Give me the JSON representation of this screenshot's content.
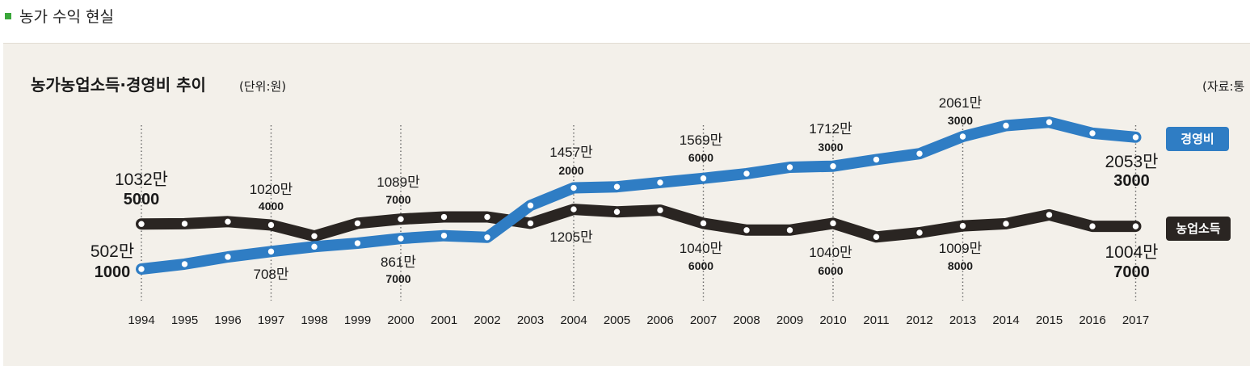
{
  "heading": "농가 수익 현실",
  "chart_data": {
    "type": "line",
    "title": "농가농업소득·경영비 추이",
    "unit": "(단위:원)",
    "source": "(자료:통",
    "x": [
      "1994",
      "1995",
      "1996",
      "1997",
      "1998",
      "1999",
      "2000",
      "2001",
      "2002",
      "2003",
      "2004",
      "2005",
      "2006",
      "2007",
      "2008",
      "2009",
      "2010",
      "2011",
      "2012",
      "2013",
      "2014",
      "2015",
      "2016",
      "2017"
    ],
    "series": [
      {
        "name": "경영비",
        "color": "#2f7dc4",
        "values": [
          5021000,
          5600000,
          6450000,
          7080000,
          7650000,
          8060000,
          8617000,
          8950000,
          8750000,
          12500000,
          14572000,
          14700000,
          15200000,
          15696000,
          16250000,
          17000000,
          17123000,
          17900000,
          18600000,
          20613000,
          21900000,
          22300000,
          21000000,
          20533000
        ]
      },
      {
        "name": "농업소득",
        "color": "#2a2522",
        "values": [
          10325000,
          10350000,
          10600000,
          10204000,
          8900000,
          10400000,
          10897000,
          11150000,
          11150000,
          10400000,
          12050000,
          11750000,
          11950000,
          10406000,
          9600000,
          9600000,
          10406000,
          8800000,
          9300000,
          10098000,
          10350000,
          11400000,
          10050000,
          10047000
        ]
      }
    ],
    "annotations": [
      {
        "series": "경영비",
        "x": "1994",
        "lines": [
          "502만",
          "1000"
        ]
      },
      {
        "series": "경영비",
        "x": "1997",
        "lines": [
          "708만"
        ]
      },
      {
        "series": "경영비",
        "x": "2000",
        "lines": [
          "861만",
          "7000"
        ]
      },
      {
        "series": "경영비",
        "x": "2004",
        "lines": [
          "1457만",
          "2000"
        ]
      },
      {
        "series": "경영비",
        "x": "2007",
        "lines": [
          "1569만",
          "6000"
        ]
      },
      {
        "series": "경영비",
        "x": "2010",
        "lines": [
          "1712만",
          "3000"
        ]
      },
      {
        "series": "경영비",
        "x": "2013",
        "lines": [
          "2061만",
          "3000"
        ]
      },
      {
        "series": "경영비",
        "x": "2017",
        "lines": [
          "2053만",
          "3000"
        ]
      },
      {
        "series": "농업소득",
        "x": "1994",
        "lines": [
          "1032만",
          "5000"
        ]
      },
      {
        "series": "농업소득",
        "x": "1997",
        "lines": [
          "1020만",
          "4000"
        ]
      },
      {
        "series": "농업소득",
        "x": "2000",
        "lines": [
          "1089만",
          "7000"
        ]
      },
      {
        "series": "농업소득",
        "x": "2004",
        "lines": [
          "1205만"
        ]
      },
      {
        "series": "농업소득",
        "x": "2007",
        "lines": [
          "1040만",
          "6000"
        ]
      },
      {
        "series": "농업소득",
        "x": "2010",
        "lines": [
          "1040만",
          "6000"
        ]
      },
      {
        "series": "농업소득",
        "x": "2013",
        "lines": [
          "1009만",
          "8000"
        ]
      },
      {
        "series": "농업소득",
        "x": "2017",
        "lines": [
          "1004만",
          "7000"
        ]
      }
    ],
    "legend": [
      "경영비",
      "농업소득"
    ],
    "ylim": [
      0,
      25000000
    ],
    "grid": false
  }
}
